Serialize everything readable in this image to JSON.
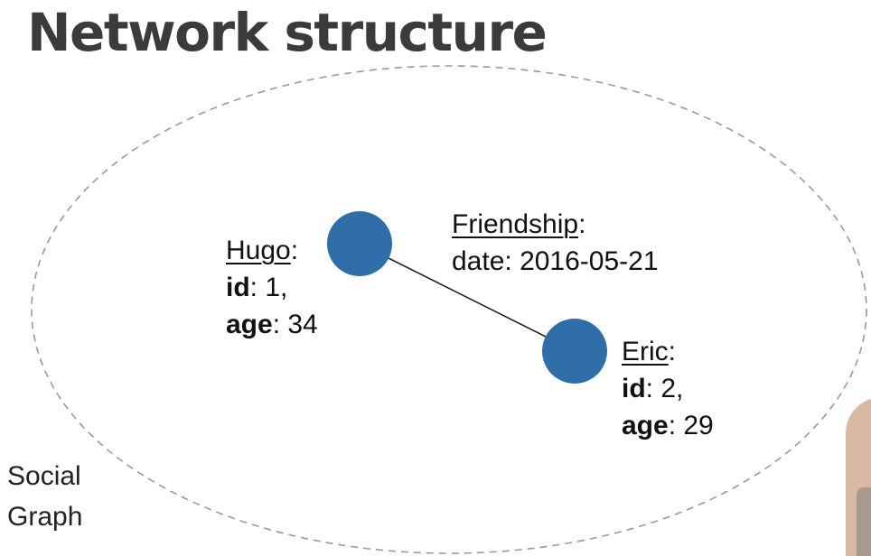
{
  "title": "Network structure",
  "graph_label": {
    "line1": "Social",
    "line2": "Graph"
  },
  "nodes": [
    {
      "name": "Hugo",
      "id_key": "id",
      "id_value": "1",
      "age_key": "age",
      "age_value": "34"
    },
    {
      "name": "Eric",
      "id_key": "id",
      "id_value": "2",
      "age_key": "age",
      "age_value": "29"
    }
  ],
  "edge": {
    "name": "Friendship",
    "date_key": "date",
    "date_value": "2016-05-21"
  },
  "colors": {
    "node_fill": "#2f6ea8",
    "edge_stroke": "#222222",
    "boundary_stroke": "#9a9a9a",
    "title": "#3b3b3b"
  }
}
